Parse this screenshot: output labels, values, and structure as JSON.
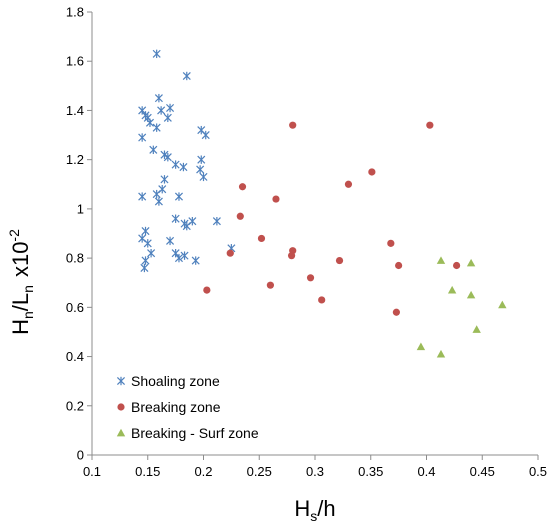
{
  "chart_data": {
    "type": "scatter",
    "xlim": [
      0.1,
      0.5
    ],
    "ylim": [
      0,
      1.8
    ],
    "x_ticks": [
      "0.1",
      "0.15",
      "0.2",
      "0.25",
      "0.3",
      "0.35",
      "0.4",
      "0.45",
      "0.5"
    ],
    "y_ticks": [
      "0",
      "0.2",
      "0.4",
      "0.6",
      "0.8",
      "1",
      "1.2",
      "1.4",
      "1.6",
      "1.8"
    ],
    "xlabel": {
      "main": "H",
      "sub": "s",
      "rest": "/h"
    },
    "ylabel": {
      "h": "H",
      "n1": "n",
      "slash": "/L",
      "n2": "n",
      "mult": "x10",
      "exp": "-2"
    },
    "grid": false,
    "legend_position": "bottom-left",
    "series": [
      {
        "name": "Shoaling zone",
        "color": "#4f81bd",
        "marker": "x-star",
        "points": [
          [
            0.158,
            1.63
          ],
          [
            0.185,
            1.54
          ],
          [
            0.16,
            1.45
          ],
          [
            0.145,
            1.4
          ],
          [
            0.162,
            1.4
          ],
          [
            0.17,
            1.41
          ],
          [
            0.148,
            1.38
          ],
          [
            0.15,
            1.37
          ],
          [
            0.168,
            1.37
          ],
          [
            0.152,
            1.35
          ],
          [
            0.158,
            1.33
          ],
          [
            0.198,
            1.32
          ],
          [
            0.202,
            1.3
          ],
          [
            0.145,
            1.29
          ],
          [
            0.155,
            1.24
          ],
          [
            0.165,
            1.22
          ],
          [
            0.168,
            1.21
          ],
          [
            0.198,
            1.2
          ],
          [
            0.175,
            1.18
          ],
          [
            0.182,
            1.17
          ],
          [
            0.197,
            1.16
          ],
          [
            0.2,
            1.13
          ],
          [
            0.165,
            1.12
          ],
          [
            0.163,
            1.08
          ],
          [
            0.158,
            1.06
          ],
          [
            0.145,
            1.05
          ],
          [
            0.178,
            1.05
          ],
          [
            0.16,
            1.03
          ],
          [
            0.175,
            0.96
          ],
          [
            0.183,
            0.94
          ],
          [
            0.19,
            0.95
          ],
          [
            0.212,
            0.95
          ],
          [
            0.185,
            0.93
          ],
          [
            0.148,
            0.91
          ],
          [
            0.145,
            0.88
          ],
          [
            0.17,
            0.87
          ],
          [
            0.15,
            0.86
          ],
          [
            0.225,
            0.84
          ],
          [
            0.153,
            0.82
          ],
          [
            0.175,
            0.82
          ],
          [
            0.183,
            0.81
          ],
          [
            0.178,
            0.8
          ],
          [
            0.148,
            0.79
          ],
          [
            0.193,
            0.79
          ],
          [
            0.147,
            0.76
          ]
        ]
      },
      {
        "name": "Breaking zone",
        "color": "#c0504d",
        "marker": "circle",
        "points": [
          [
            0.28,
            1.34
          ],
          [
            0.403,
            1.34
          ],
          [
            0.351,
            1.15
          ],
          [
            0.33,
            1.1
          ],
          [
            0.235,
            1.09
          ],
          [
            0.265,
            1.04
          ],
          [
            0.233,
            0.97
          ],
          [
            0.252,
            0.88
          ],
          [
            0.368,
            0.86
          ],
          [
            0.28,
            0.83
          ],
          [
            0.224,
            0.82
          ],
          [
            0.279,
            0.81
          ],
          [
            0.322,
            0.79
          ],
          [
            0.375,
            0.77
          ],
          [
            0.427,
            0.77
          ],
          [
            0.296,
            0.72
          ],
          [
            0.26,
            0.69
          ],
          [
            0.203,
            0.67
          ],
          [
            0.306,
            0.63
          ],
          [
            0.373,
            0.58
          ]
        ]
      },
      {
        "name": "Breaking - Surf zone",
        "color": "#9bbb59",
        "marker": "triangle",
        "points": [
          [
            0.413,
            0.79
          ],
          [
            0.44,
            0.78
          ],
          [
            0.423,
            0.67
          ],
          [
            0.44,
            0.65
          ],
          [
            0.468,
            0.61
          ],
          [
            0.445,
            0.51
          ],
          [
            0.395,
            0.44
          ],
          [
            0.413,
            0.41
          ]
        ]
      }
    ]
  }
}
